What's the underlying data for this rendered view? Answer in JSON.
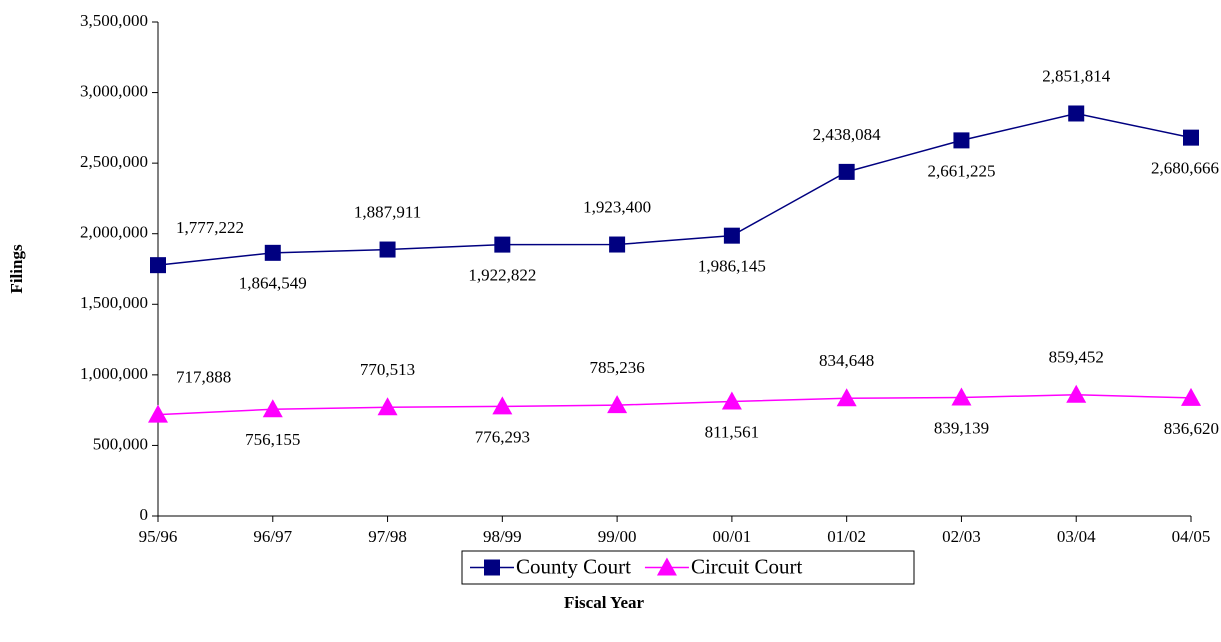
{
  "chart_data": {
    "type": "line",
    "x_label": "Fiscal Year",
    "y_label": "Filings",
    "categories": [
      "95/96",
      "96/97",
      "97/98",
      "98/99",
      "99/00",
      "00/01",
      "01/02",
      "02/03",
      "03/04",
      "04/05"
    ],
    "series": [
      {
        "name": "County Court",
        "color": "#000080",
        "marker": "square",
        "values": [
          1777222,
          1864549,
          1887911,
          1922822,
          1923400,
          1986145,
          2438084,
          2661225,
          2851814,
          2680666
        ],
        "value_labels": [
          "1,777,222",
          "1,864,549",
          "1,887,911",
          "1,922,822",
          "1,923,400",
          "1,986,145",
          "2,438,084",
          "2,661,225",
          "2,851,814",
          "2,680,666"
        ]
      },
      {
        "name": "Circuit Court",
        "color": "#ff00ff",
        "marker": "triangle",
        "values": [
          717888,
          756155,
          770513,
          776293,
          785236,
          811561,
          834648,
          839139,
          859452,
          836620
        ],
        "value_labels": [
          "717,888",
          "756,155",
          "770,513",
          "776,293",
          "785,236",
          "811,561",
          "834,648",
          "839,139",
          "859,452",
          "836,620"
        ]
      }
    ],
    "ylim": [
      0,
      3500000
    ],
    "yticks": [
      0,
      {
        "value": 500000,
        "label": "500,000"
      },
      {
        "value": 1000000,
        "label": "1,000,000"
      },
      {
        "value": 1500000,
        "label": "1,500,000"
      },
      {
        "value": 2000000,
        "label": "2,000,000"
      },
      {
        "value": 2500000,
        "label": "2,500,000"
      },
      {
        "value": 3000000,
        "label": "3,000,000"
      },
      {
        "value": 3500000,
        "label": "3,500,000"
      }
    ],
    "legend": "bottom"
  }
}
